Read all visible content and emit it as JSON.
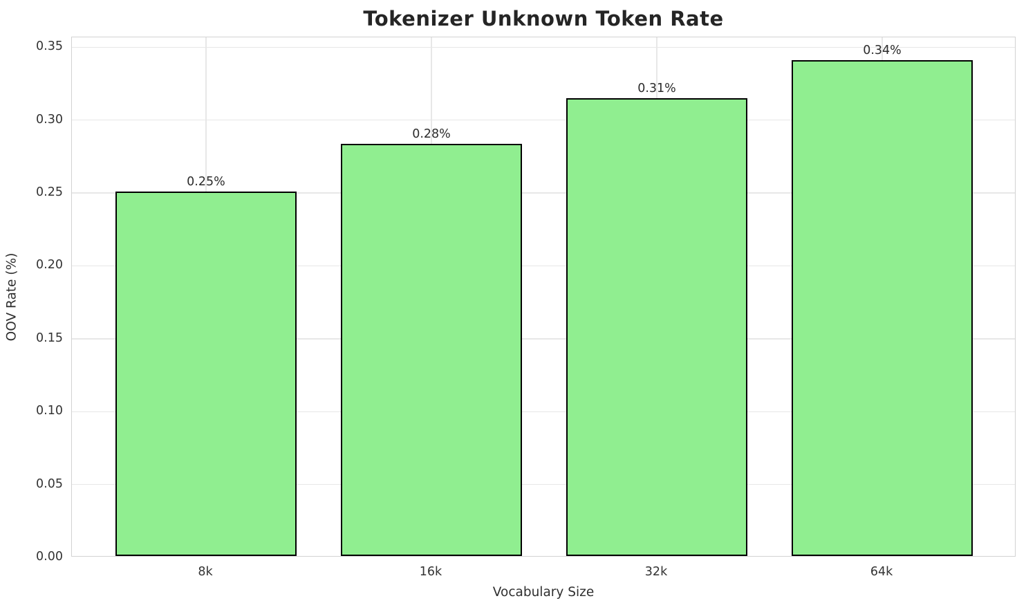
{
  "chart_data": {
    "type": "bar",
    "title": "Tokenizer Unknown Token Rate",
    "xlabel": "Vocabulary Size",
    "ylabel": "OOV Rate (%)",
    "categories": [
      "8k",
      "16k",
      "32k",
      "64k"
    ],
    "values": [
      0.25,
      0.283,
      0.314,
      0.34
    ],
    "bar_labels": [
      "0.25%",
      "0.28%",
      "0.31%",
      "0.34%"
    ],
    "ytick_values": [
      0.0,
      0.05,
      0.1,
      0.15,
      0.2,
      0.25,
      0.3,
      0.35
    ],
    "ytick_labels": [
      "0.00",
      "0.05",
      "0.10",
      "0.15",
      "0.20",
      "0.25",
      "0.30",
      "0.35"
    ],
    "ylim": [
      0,
      0.3568
    ],
    "grid": true,
    "legend": "none",
    "bar_color": "#90EE90",
    "bar_edge_color": "#000000",
    "grid_color": "#e7e7e7",
    "spine_color": "#d2d2d2",
    "title_color": "#252525",
    "tick_color": "#333333"
  }
}
